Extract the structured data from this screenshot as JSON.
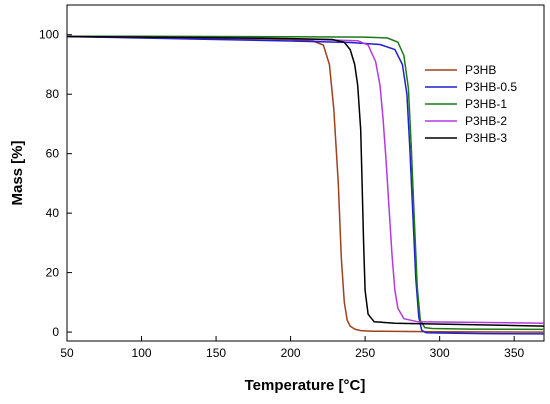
{
  "chart_data": {
    "type": "line",
    "xlabel": "Temperature [°C]",
    "ylabel": "Mass [%]",
    "xlim": [
      50,
      370
    ],
    "ylim": [
      -3,
      110
    ],
    "xticks": [
      50,
      100,
      150,
      200,
      250,
      300,
      350
    ],
    "yticks": [
      0,
      20,
      40,
      60,
      80,
      100
    ],
    "grid": false,
    "legend_position": "top-right",
    "series": [
      {
        "name": "P3HB",
        "color": "#a0401c",
        "x": [
          50,
          100,
          150,
          200,
          215,
          222,
          226,
          229,
          232,
          234,
          236,
          238,
          240,
          243,
          247,
          255,
          300,
          370
        ],
        "y": [
          99.3,
          99.1,
          98.8,
          98.4,
          97.9,
          96.5,
          90.0,
          75.0,
          50.0,
          25.0,
          10.0,
          4.0,
          2.0,
          1.0,
          0.5,
          0.3,
          0.1,
          0.0
        ]
      },
      {
        "name": "P3HB-0.5",
        "color": "#1f1fd1",
        "x": [
          50,
          100,
          150,
          200,
          240,
          260,
          270,
          275,
          278,
          280,
          282,
          284,
          286,
          288,
          291,
          300,
          330,
          370
        ],
        "y": [
          99.4,
          98.9,
          98.4,
          97.9,
          97.4,
          96.7,
          95.0,
          90.0,
          80.0,
          62.0,
          40.0,
          18.0,
          5.0,
          0.5,
          -0.2,
          -0.3,
          -0.5,
          -0.6
        ]
      },
      {
        "name": "P3HB-1",
        "color": "#1c7a1c",
        "x": [
          50,
          100,
          150,
          200,
          250,
          265,
          272,
          276,
          279,
          281,
          283,
          285,
          287,
          290,
          295,
          320,
          370
        ],
        "y": [
          99.5,
          99.5,
          99.4,
          99.3,
          99.2,
          98.9,
          97.5,
          93.0,
          82.0,
          62.0,
          38.0,
          15.0,
          4.0,
          1.5,
          1.2,
          1.0,
          0.9
        ]
      },
      {
        "name": "P3HB-2",
        "color": "#b43ae0",
        "x": [
          50,
          100,
          150,
          200,
          245,
          252,
          257,
          260,
          262,
          264,
          266,
          268,
          270,
          272,
          276,
          285,
          370
        ],
        "y": [
          99.4,
          99.2,
          98.9,
          98.6,
          98.0,
          96.5,
          91.0,
          83.0,
          72.0,
          58.0,
          42.0,
          26.0,
          14.0,
          8.0,
          4.5,
          3.5,
          3.0
        ]
      },
      {
        "name": "P3HB-3",
        "color": "#000000",
        "x": [
          50,
          100,
          150,
          200,
          228,
          236,
          240,
          243,
          245,
          247,
          248,
          249,
          250,
          252,
          256,
          270,
          370
        ],
        "y": [
          99.4,
          99.2,
          99.0,
          98.7,
          98.4,
          97.5,
          95.0,
          90.0,
          83.0,
          68.0,
          50.0,
          30.0,
          14.0,
          6.0,
          3.5,
          3.0,
          2.0
        ]
      }
    ]
  }
}
